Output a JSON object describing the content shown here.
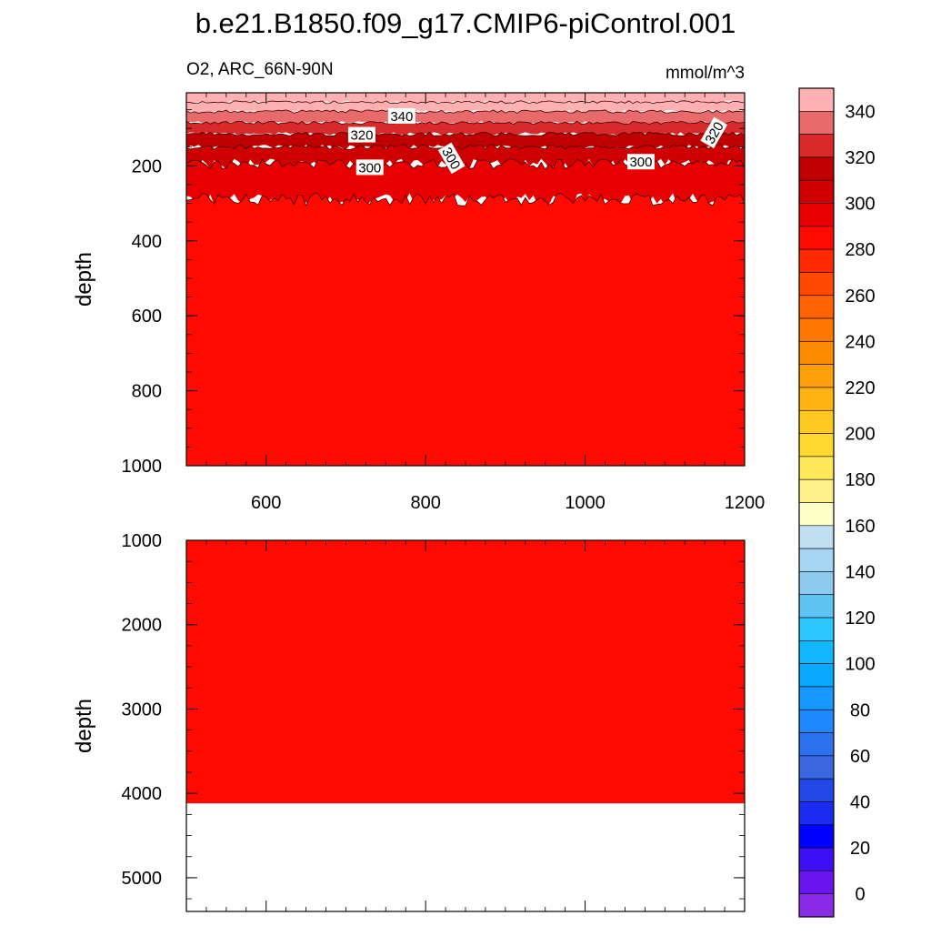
{
  "title": "b.e21.B1850.f09_g17.CMIP6-piControl.001",
  "subtitle_left": "O2, ARC_66N-90N",
  "subtitle_right": "mmol/m^3",
  "colorbar": {
    "levels": [
      0,
      20,
      40,
      60,
      80,
      100,
      120,
      140,
      160,
      180,
      200,
      220,
      240,
      260,
      280,
      300,
      320,
      340
    ],
    "labels": [
      "0",
      "20",
      "40",
      "60",
      "80",
      "100",
      "120",
      "140",
      "160",
      "180",
      "200",
      "220",
      "240",
      "260",
      "280",
      "300",
      "320",
      "340"
    ],
    "colors": [
      "#8a2be8",
      "#6a14f0",
      "#3c10f2",
      "#0000ff",
      "#1a2cf0",
      "#2448e8",
      "#3a66e0",
      "#2a72ee",
      "#1e88ff",
      "#1899ff",
      "#0aa8ff",
      "#12b8ff",
      "#2ac8ff",
      "#5ec4f4",
      "#8ccaee",
      "#a6d6f2",
      "#c0e0f2",
      "#ffffc8",
      "#fff088",
      "#ffe85a",
      "#ffd830",
      "#ffc822",
      "#ffb414",
      "#ffa00c",
      "#ff8c00",
      "#ff7600",
      "#ff6200",
      "#ff4a00",
      "#ff2a00",
      "#ff0a00",
      "#e80000",
      "#d00000",
      "#c00000",
      "#d82a2a",
      "#e86a6a",
      "#ffb0b0"
    ]
  },
  "chart_data": [
    {
      "type": "heatmap",
      "panel": "upper",
      "variable": "O2",
      "region": "ARC_66N-90N",
      "units": "mmol/m^3",
      "ylabel": "depth",
      "xlim": [
        500,
        1200
      ],
      "ylim": [
        1000,
        5
      ],
      "xticks": [
        "600",
        "800",
        "1000",
        "1200"
      ],
      "yticks": [
        "200",
        "400",
        "600",
        "800",
        "1000"
      ],
      "layers": [
        {
          "depth_top": 5,
          "depth_bottom": 30,
          "value": 350
        },
        {
          "depth_top": 30,
          "depth_bottom": 55,
          "value": 345
        },
        {
          "depth_top": 55,
          "depth_bottom": 85,
          "value": 335
        },
        {
          "depth_top": 85,
          "depth_bottom": 115,
          "value": 325
        },
        {
          "depth_top": 115,
          "depth_bottom": 150,
          "value": 315
        },
        {
          "depth_top": 150,
          "depth_bottom": 195,
          "value": 305
        },
        {
          "depth_top": 195,
          "depth_bottom": 290,
          "value": 295
        },
        {
          "depth_top": 290,
          "depth_bottom": 1000,
          "value": 285
        }
      ],
      "contour_labels": [
        {
          "text": "340",
          "x": 770,
          "depth": 68
        },
        {
          "text": "320",
          "x": 720,
          "depth": 118
        },
        {
          "text": "320",
          "x": 1162,
          "depth": 112
        },
        {
          "text": "300",
          "x": 730,
          "depth": 205
        },
        {
          "text": "300",
          "x": 832,
          "depth": 180
        },
        {
          "text": "300",
          "x": 1070,
          "depth": 190
        }
      ]
    },
    {
      "type": "heatmap",
      "panel": "lower",
      "variable": "O2",
      "units": "mmol/m^3",
      "ylabel": "depth",
      "xlim": [
        500,
        1200
      ],
      "ylim": [
        5400,
        1000
      ],
      "yticks": [
        "1000",
        "2000",
        "3000",
        "4000",
        "5000"
      ],
      "layers": [
        {
          "depth_top": 1000,
          "depth_bottom": 4120,
          "value": 285
        }
      ],
      "missing_below_depth": 4120
    }
  ]
}
